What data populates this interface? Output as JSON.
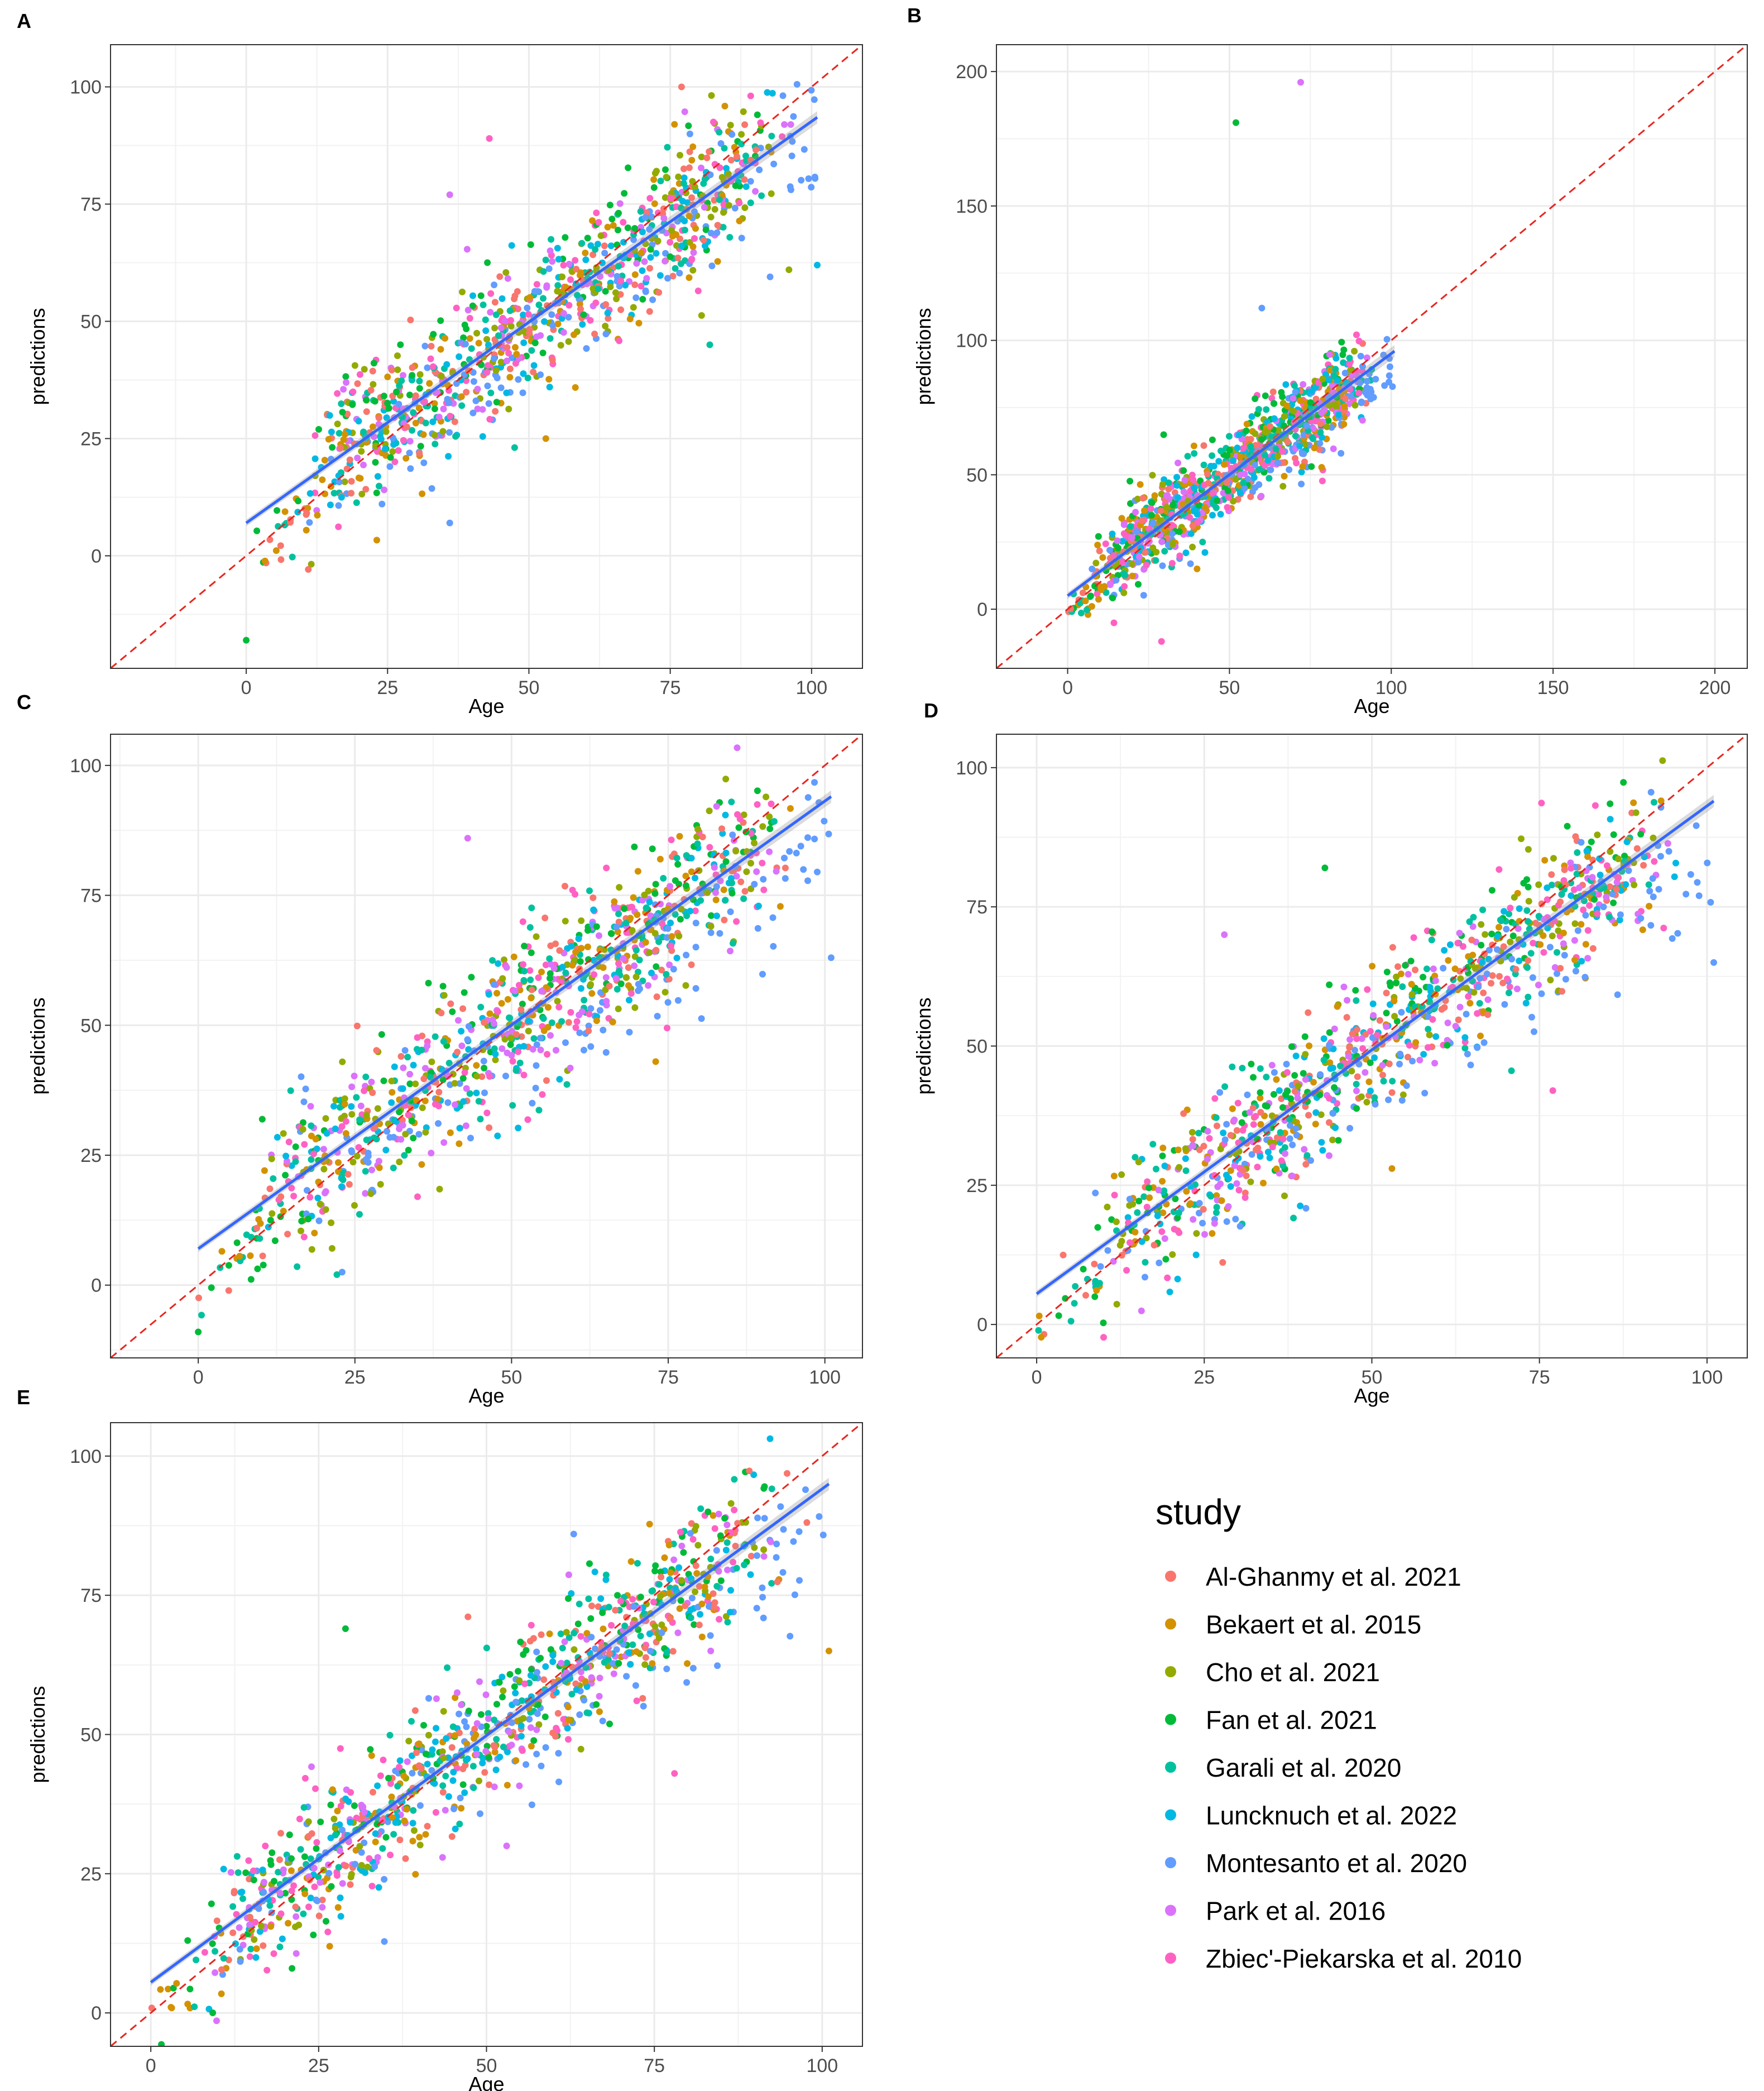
{
  "chart_data": [
    {
      "panel": "A",
      "type": "scatter",
      "xlabel": "Age",
      "ylabel": "predictions",
      "xlim": [
        -24,
        109
      ],
      "ylim": [
        -24,
        109
      ],
      "xticks": [
        0,
        25,
        50,
        75,
        100
      ],
      "yticks": [
        0,
        25,
        50,
        75,
        100
      ],
      "fit_line": {
        "x": [
          0,
          101
        ],
        "y": [
          7,
          93.5
        ]
      },
      "identity_line": true,
      "seed": 11,
      "spread": 7.5,
      "outliers": [
        [
          0,
          -18
        ],
        [
          36,
          77
        ],
        [
          43,
          89
        ],
        [
          53,
          25
        ],
        [
          36,
          7
        ],
        [
          82,
          45
        ],
        [
          77,
          100
        ],
        [
          96,
          61
        ],
        [
          101,
          62
        ]
      ]
    },
    {
      "panel": "B",
      "type": "scatter",
      "xlabel": "Age",
      "ylabel": "predictions",
      "xlim": [
        -22,
        210
      ],
      "ylim": [
        -22,
        210
      ],
      "xticks": [
        0,
        50,
        100,
        150,
        200
      ],
      "yticks": [
        0,
        50,
        100,
        150,
        200
      ],
      "fit_line": {
        "x": [
          0,
          101
        ],
        "y": [
          5,
          96
        ]
      },
      "identity_line": true,
      "seed": 23,
      "spread": 8,
      "outliers": [
        [
          52,
          181
        ],
        [
          72,
          196
        ],
        [
          29,
          -12
        ],
        [
          40,
          15
        ],
        [
          60,
          112
        ]
      ]
    },
    {
      "panel": "C",
      "type": "scatter",
      "xlabel": "Age",
      "ylabel": "predictions",
      "xlim": [
        -14,
        106
      ],
      "ylim": [
        -14,
        106
      ],
      "xticks": [
        0,
        25,
        50,
        75,
        100
      ],
      "yticks": [
        0,
        25,
        50,
        75,
        100
      ],
      "fit_line": {
        "x": [
          0,
          101
        ],
        "y": [
          7,
          94
        ]
      },
      "identity_line": true,
      "seed": 37,
      "spread": 7.5,
      "outliers": [
        [
          0,
          -9
        ],
        [
          43,
          86
        ],
        [
          35,
          17
        ],
        [
          73,
          43
        ],
        [
          101,
          63
        ]
      ]
    },
    {
      "panel": "D",
      "type": "scatter",
      "xlabel": "Age",
      "ylabel": "predictions",
      "xlim": [
        -6,
        106
      ],
      "ylim": [
        -6,
        106
      ],
      "xticks": [
        0,
        25,
        50,
        75,
        100
      ],
      "yticks": [
        0,
        25,
        50,
        75,
        100
      ],
      "fit_line": {
        "x": [
          0,
          101
        ],
        "y": [
          5.5,
          94
        ]
      },
      "identity_line": true,
      "seed": 53,
      "spread": 6.5,
      "outliers": [
        [
          43,
          82
        ],
        [
          28,
          70
        ],
        [
          77,
          42
        ],
        [
          53,
          28
        ],
        [
          101,
          65
        ]
      ]
    },
    {
      "panel": "E",
      "type": "scatter",
      "xlabel": "Age",
      "ylabel": "predictions",
      "xlim": [
        -6,
        106
      ],
      "ylim": [
        -6,
        106
      ],
      "xticks": [
        0,
        25,
        50,
        75,
        100
      ],
      "yticks": [
        0,
        25,
        50,
        75,
        100
      ],
      "fit_line": {
        "x": [
          0,
          101
        ],
        "y": [
          5.5,
          95
        ]
      },
      "identity_line": true,
      "seed": 71,
      "spread": 6.5,
      "outliers": [
        [
          29,
          69
        ],
        [
          53,
          30
        ],
        [
          78,
          43
        ],
        [
          101,
          65
        ],
        [
          63,
          86
        ]
      ]
    }
  ],
  "legend": {
    "title": "study",
    "entries": [
      {
        "label": "Al-Ghanmy et al. 2021",
        "color": "#F8766D"
      },
      {
        "label": "Bekaert et al. 2015",
        "color": "#D39200"
      },
      {
        "label": "Cho et al. 2021",
        "color": "#93AA00"
      },
      {
        "label": "Fan et al. 2021",
        "color": "#00BA38"
      },
      {
        "label": "Garali et al. 2020",
        "color": "#00C19F"
      },
      {
        "label": "Luncknuch et al. 2022",
        "color": "#00B9E3"
      },
      {
        "label": "Montesanto et al. 2020",
        "color": "#619CFF"
      },
      {
        "label": "Park et al. 2016",
        "color": "#DB72FB"
      },
      {
        "label": "Zbiec'-Piekarska et al. 2010",
        "color": "#FF61C3"
      }
    ]
  },
  "colors": {
    "fit": "#3366FF",
    "identity": "#E8261F",
    "grid": "#EBEBEB",
    "border": "#333333"
  }
}
